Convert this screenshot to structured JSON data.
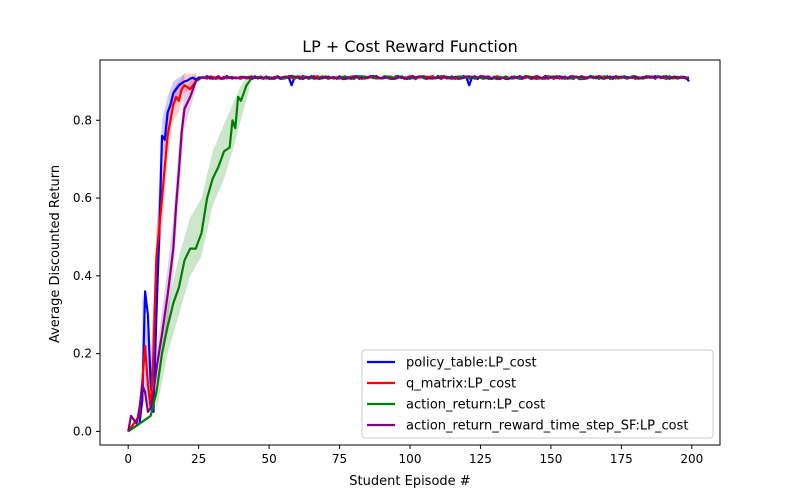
{
  "chart_data": {
    "type": "line",
    "title": "LP + Cost Reward Function",
    "xlabel": "Student Episode #",
    "ylabel": "Average Discounted Return",
    "xlim": [
      -10,
      210
    ],
    "ylim": [
      -0.035,
      0.955
    ],
    "x_ticks": [
      0,
      25,
      50,
      75,
      100,
      125,
      150,
      175,
      200
    ],
    "y_ticks": [
      0.0,
      0.2,
      0.4,
      0.6,
      0.8
    ],
    "x_tick_labels": [
      "0",
      "25",
      "50",
      "75",
      "100",
      "125",
      "150",
      "175",
      "200"
    ],
    "y_tick_labels": [
      "0.0",
      "0.2",
      "0.4",
      "0.6",
      "0.8"
    ],
    "grid": false,
    "legend_position": "lower-right",
    "plateau": 0.908,
    "series": [
      {
        "name": "policy_table:LP_cost",
        "color": "#0000ff",
        "points": [
          [
            0,
            0.0
          ],
          [
            2,
            0.01
          ],
          [
            4,
            0.02
          ],
          [
            5,
            0.08
          ],
          [
            6,
            0.36
          ],
          [
            7,
            0.3
          ],
          [
            8,
            0.12
          ],
          [
            9,
            0.05
          ],
          [
            10,
            0.3
          ],
          [
            11,
            0.5
          ],
          [
            12,
            0.76
          ],
          [
            13,
            0.75
          ],
          [
            14,
            0.82
          ],
          [
            15,
            0.84
          ],
          [
            16,
            0.87
          ],
          [
            18,
            0.89
          ],
          [
            20,
            0.9
          ],
          [
            25,
            0.91
          ],
          [
            57,
            0.91
          ],
          [
            58,
            0.89
          ],
          [
            59,
            0.91
          ],
          [
            120,
            0.91
          ],
          [
            121,
            0.89
          ],
          [
            122,
            0.91
          ],
          [
            198,
            0.91
          ],
          [
            199,
            0.9
          ]
        ],
        "band": [
          [
            5,
            0.12,
            0.36
          ],
          [
            8,
            0.05,
            0.18
          ],
          [
            12,
            0.7,
            0.8
          ],
          [
            14,
            0.75,
            0.86
          ],
          [
            16,
            0.83,
            0.9
          ],
          [
            18,
            0.86,
            0.91
          ],
          [
            20,
            0.88,
            0.92
          ]
        ]
      },
      {
        "name": "q_matrix:LP_cost",
        "color": "#ff0000",
        "points": [
          [
            0,
            0.0
          ],
          [
            2,
            0.02
          ],
          [
            4,
            0.04
          ],
          [
            6,
            0.22
          ],
          [
            7,
            0.12
          ],
          [
            8,
            0.06
          ],
          [
            9,
            0.2
          ],
          [
            10,
            0.45
          ],
          [
            11,
            0.52
          ],
          [
            12,
            0.6
          ],
          [
            13,
            0.68
          ],
          [
            14,
            0.76
          ],
          [
            15,
            0.8
          ],
          [
            16,
            0.84
          ],
          [
            17,
            0.86
          ],
          [
            18,
            0.85
          ],
          [
            19,
            0.88
          ],
          [
            20,
            0.89
          ],
          [
            22,
            0.88
          ],
          [
            24,
            0.9
          ],
          [
            26,
            0.91
          ],
          [
            199,
            0.91
          ]
        ],
        "band": [
          [
            8,
            0.04,
            0.15
          ],
          [
            10,
            0.35,
            0.52
          ],
          [
            12,
            0.52,
            0.68
          ],
          [
            14,
            0.7,
            0.82
          ],
          [
            16,
            0.8,
            0.88
          ],
          [
            18,
            0.82,
            0.9
          ],
          [
            20,
            0.87,
            0.92
          ],
          [
            24,
            0.89,
            0.92
          ]
        ]
      },
      {
        "name": "action_return:LP_cost",
        "color": "#008000",
        "points": [
          [
            0,
            0.0
          ],
          [
            2,
            0.01
          ],
          [
            4,
            0.02
          ],
          [
            6,
            0.03
          ],
          [
            8,
            0.04
          ],
          [
            10,
            0.1
          ],
          [
            12,
            0.2
          ],
          [
            14,
            0.27
          ],
          [
            16,
            0.33
          ],
          [
            18,
            0.37
          ],
          [
            20,
            0.44
          ],
          [
            22,
            0.47
          ],
          [
            24,
            0.47
          ],
          [
            26,
            0.51
          ],
          [
            28,
            0.6
          ],
          [
            30,
            0.65
          ],
          [
            32,
            0.68
          ],
          [
            34,
            0.72
          ],
          [
            36,
            0.73
          ],
          [
            37,
            0.8
          ],
          [
            38,
            0.78
          ],
          [
            39,
            0.86
          ],
          [
            40,
            0.85
          ],
          [
            41,
            0.87
          ],
          [
            42,
            0.89
          ],
          [
            44,
            0.91
          ],
          [
            199,
            0.91
          ]
        ],
        "band": [
          [
            10,
            0.05,
            0.12
          ],
          [
            14,
            0.2,
            0.32
          ],
          [
            18,
            0.3,
            0.45
          ],
          [
            22,
            0.4,
            0.55
          ],
          [
            26,
            0.45,
            0.6
          ],
          [
            30,
            0.58,
            0.72
          ],
          [
            34,
            0.65,
            0.79
          ],
          [
            37,
            0.72,
            0.84
          ],
          [
            40,
            0.8,
            0.89
          ],
          [
            43,
            0.88,
            0.92
          ]
        ]
      },
      {
        "name": "action_return_reward_time_step_SF:LP_cost",
        "color": "#800080",
        "points": [
          [
            0,
            0.0
          ],
          [
            1,
            0.04
          ],
          [
            2,
            0.03
          ],
          [
            3,
            0.02
          ],
          [
            4,
            0.06
          ],
          [
            5,
            0.12
          ],
          [
            6,
            0.1
          ],
          [
            7,
            0.05
          ],
          [
            8,
            0.06
          ],
          [
            9,
            0.1
          ],
          [
            10,
            0.16
          ],
          [
            12,
            0.25
          ],
          [
            14,
            0.35
          ],
          [
            16,
            0.47
          ],
          [
            17,
            0.58
          ],
          [
            18,
            0.67
          ],
          [
            19,
            0.77
          ],
          [
            20,
            0.83
          ],
          [
            22,
            0.86
          ],
          [
            24,
            0.9
          ],
          [
            26,
            0.91
          ],
          [
            199,
            0.91
          ]
        ],
        "band": [
          [
            10,
            0.1,
            0.2
          ],
          [
            14,
            0.28,
            0.42
          ],
          [
            16,
            0.4,
            0.55
          ],
          [
            18,
            0.6,
            0.74
          ],
          [
            20,
            0.78,
            0.88
          ],
          [
            22,
            0.83,
            0.9
          ],
          [
            24,
            0.88,
            0.92
          ]
        ]
      }
    ]
  }
}
